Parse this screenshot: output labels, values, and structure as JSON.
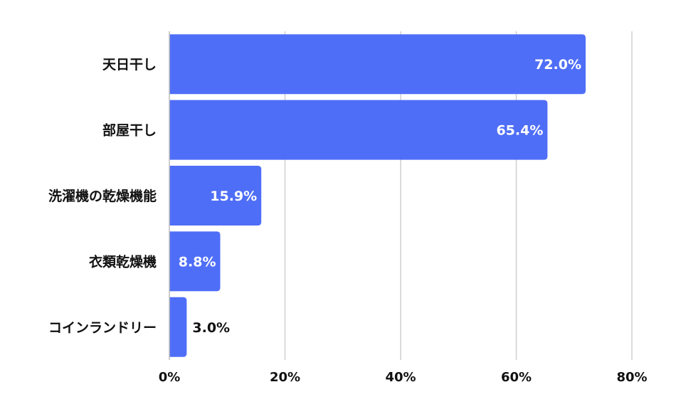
{
  "chart_data": {
    "type": "bar",
    "orientation": "horizontal",
    "categories": [
      "天日干し",
      "部屋干し",
      "洗濯機の乾燥機能",
      "衣類乾燥機",
      "コインランドリー"
    ],
    "values": [
      72.0,
      65.4,
      15.9,
      8.8,
      3.0
    ],
    "value_labels": [
      "72.0%",
      "65.4%",
      "15.9%",
      "8.8%",
      "3.0%"
    ],
    "xlim": [
      0,
      80
    ],
    "xticks": [
      0,
      20,
      40,
      60,
      80
    ],
    "xtick_labels": [
      "0%",
      "20%",
      "40%",
      "60%",
      "80%"
    ],
    "title": "",
    "xlabel": "",
    "ylabel": "",
    "grid": true,
    "legend": "none",
    "colors": {
      "bar": "#4f6ef7",
      "label_inside": "#ffffff",
      "label_outside": "#111111",
      "grid": "#cfcfcf"
    }
  }
}
